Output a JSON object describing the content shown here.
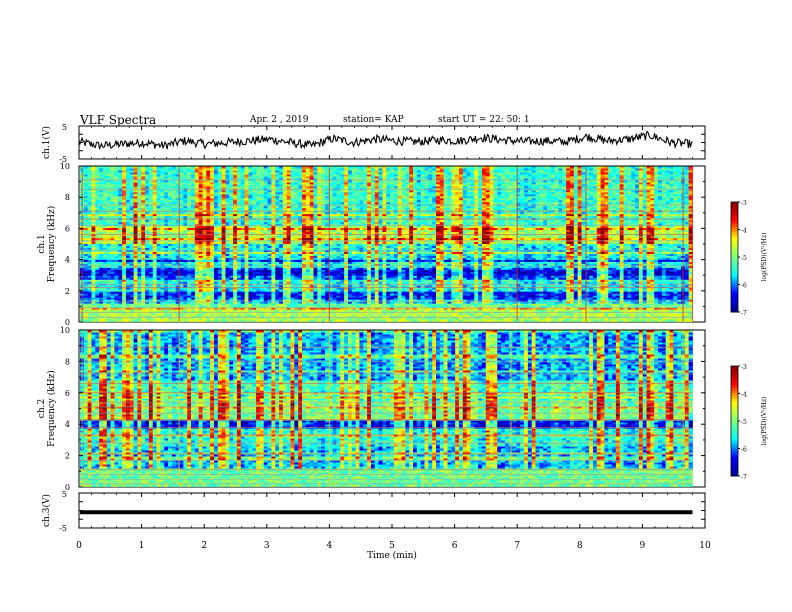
{
  "header": {
    "title": "VLF Spectra",
    "date": "Apr. 2  , 2019",
    "station": "station= KAP",
    "start": "start UT =  22: 50: 1"
  },
  "chart_data": [
    {
      "type": "line",
      "ylabel": "ch.1(V)",
      "ylim": [
        -5,
        5
      ],
      "yticks": [
        "5",
        "-5"
      ],
      "xlim": [
        0,
        9.8
      ],
      "line_color": "#000000",
      "values_mean": [
        0.2,
        -1,
        -0.5,
        0,
        -1,
        0.5,
        -0.5,
        0,
        0.5,
        1,
        0,
        -1,
        1.2,
        0,
        1,
        0.5,
        0.2,
        0.8,
        0.5,
        1.5,
        0.8,
        0.3,
        0.5,
        0.2,
        1.8,
        0.5,
        1,
        2.2,
        0,
        -0.5
      ]
    },
    {
      "type": "heatmap",
      "ylabel": "ch.1\nFrequency (kHz)",
      "ylim": [
        0,
        10
      ],
      "yticks": [
        "0",
        "2",
        "4",
        "6",
        "8",
        "10"
      ],
      "xlim": [
        0,
        9.8
      ],
      "colorbar": {
        "label": "log(PSD)(V²/Hz)",
        "ticks": [
          "-3",
          "-4",
          "-5",
          "-6",
          "-7"
        ],
        "range": [
          -7,
          -3
        ]
      }
    },
    {
      "type": "heatmap",
      "ylabel": "ch.2\nFrequency (kHz)",
      "ylim": [
        0,
        10
      ],
      "yticks": [
        "0",
        "2",
        "4",
        "6",
        "8",
        "10"
      ],
      "xlim": [
        0,
        9.8
      ],
      "colorbar": {
        "label": "log(PSD)(V²/Hz)",
        "ticks": [
          "-3",
          "-4",
          "-5",
          "-6",
          "-7"
        ],
        "range": [
          -7,
          -3
        ]
      }
    },
    {
      "type": "line",
      "ylabel": "ch.3(V)",
      "ylim": [
        -5,
        5
      ],
      "yticks": [
        "5",
        "-5"
      ],
      "xlim": [
        0,
        9.8
      ],
      "constant_value": -0.5,
      "line_color": "#000000"
    }
  ],
  "xaxis": {
    "label": "Time (min)",
    "range": [
      0,
      10
    ],
    "ticks": [
      "0",
      "1",
      "2",
      "3",
      "4",
      "5",
      "6",
      "7",
      "8",
      "9",
      "10"
    ]
  },
  "colors": {
    "colormap": [
      "#00008f",
      "#0000ff",
      "#00ffff",
      "#7fff7f",
      "#ffff00",
      "#ff0000",
      "#7f0000"
    ]
  }
}
